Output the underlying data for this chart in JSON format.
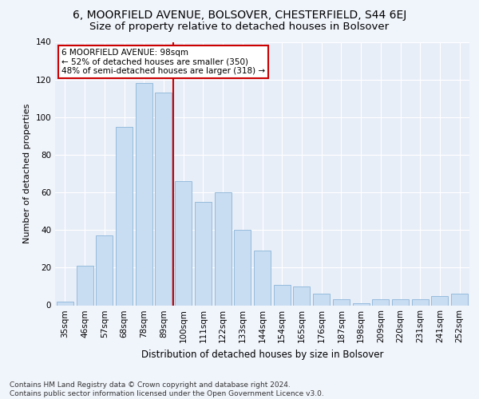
{
  "title": "6, MOORFIELD AVENUE, BOLSOVER, CHESTERFIELD, S44 6EJ",
  "subtitle": "Size of property relative to detached houses in Bolsover",
  "xlabel": "Distribution of detached houses by size in Bolsover",
  "ylabel": "Number of detached properties",
  "categories": [
    "35sqm",
    "46sqm",
    "57sqm",
    "68sqm",
    "78sqm",
    "89sqm",
    "100sqm",
    "111sqm",
    "122sqm",
    "133sqm",
    "144sqm",
    "154sqm",
    "165sqm",
    "176sqm",
    "187sqm",
    "198sqm",
    "209sqm",
    "220sqm",
    "231sqm",
    "241sqm",
    "252sqm"
  ],
  "values": [
    2,
    21,
    37,
    95,
    118,
    113,
    66,
    55,
    60,
    40,
    29,
    11,
    10,
    6,
    3,
    1,
    3,
    3,
    3,
    5,
    6
  ],
  "bar_color": "#c9ddf2",
  "bar_edge_color": "#8ab4d8",
  "vline_pos": 5.5,
  "vline_color": "#cc0000",
  "annotation_text": "6 MOORFIELD AVENUE: 98sqm\n← 52% of detached houses are smaller (350)\n48% of semi-detached houses are larger (318) →",
  "annotation_box_color": "#ffffff",
  "annotation_box_edge_color": "#cc0000",
  "ylim": [
    0,
    140
  ],
  "yticks": [
    0,
    20,
    40,
    60,
    80,
    100,
    120,
    140
  ],
  "bg_color": "#f0f4fb",
  "plot_bg_color": "#e8eef8",
  "grid_color": "#ffffff",
  "footer": "Contains HM Land Registry data © Crown copyright and database right 2024.\nContains public sector information licensed under the Open Government Licence v3.0.",
  "title_fontsize": 10,
  "subtitle_fontsize": 9.5,
  "xlabel_fontsize": 8.5,
  "ylabel_fontsize": 8,
  "tick_fontsize": 7.5,
  "annotation_fontsize": 7.5,
  "footer_fontsize": 6.5
}
